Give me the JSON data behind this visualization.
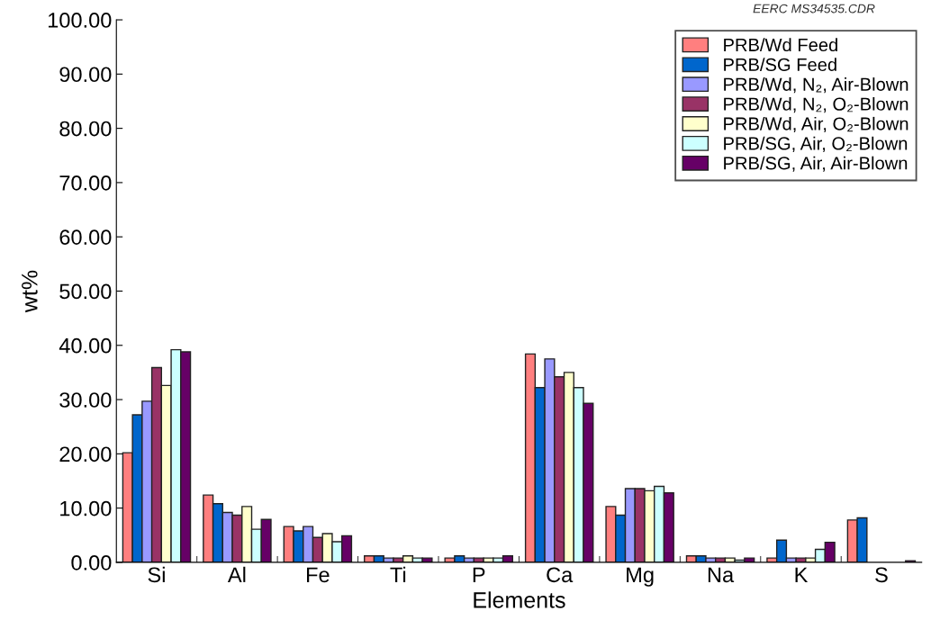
{
  "chart_data": {
    "type": "bar",
    "xlabel": "Elements",
    "ylabel": "wt%",
    "categories": [
      "Si",
      "Al",
      "Fe",
      "Ti",
      "P",
      "Ca",
      "Mg",
      "Na",
      "K",
      "S"
    ],
    "series": [
      {
        "name": "PRB/Wd Feed",
        "color": "#ff7f7f",
        "values": [
          20.2,
          12.4,
          6.6,
          1.2,
          0.8,
          38.4,
          10.3,
          1.2,
          0.8,
          7.8
        ]
      },
      {
        "name": "PRB/SG Feed",
        "color": "#0066cc",
        "values": [
          27.2,
          10.8,
          5.8,
          1.2,
          1.2,
          32.2,
          8.7,
          1.2,
          4.1,
          8.2
        ]
      },
      {
        "name": "PRB/Wd, N₂, Air-Blown",
        "color": "#9999ff",
        "values": [
          29.7,
          9.2,
          6.6,
          0.8,
          0.8,
          37.5,
          13.6,
          0.8,
          0.8,
          null
        ]
      },
      {
        "name": "PRB/Wd, N₂, O₂-Blown",
        "color": "#993366",
        "values": [
          35.9,
          8.7,
          4.6,
          0.8,
          0.8,
          34.2,
          13.6,
          0.8,
          0.8,
          null
        ]
      },
      {
        "name": "PRB/Wd, Air, O₂-Blown",
        "color": "#ffffcc",
        "values": [
          32.6,
          10.3,
          5.3,
          1.2,
          0.8,
          35.0,
          13.2,
          0.8,
          0.8,
          null
        ]
      },
      {
        "name": "PRB/SG, Air, O₂-Blown",
        "color": "#ccffff",
        "values": [
          39.2,
          6.1,
          3.8,
          0.8,
          0.8,
          32.2,
          14.0,
          0.4,
          2.4,
          null
        ]
      },
      {
        "name": "PRB/SG, Air, Air-Blown",
        "color": "#660066",
        "values": [
          38.8,
          7.9,
          4.9,
          0.8,
          1.2,
          29.3,
          12.8,
          0.8,
          3.7,
          0.3
        ]
      }
    ],
    "ylim": [
      0,
      100
    ],
    "yticks": [
      {
        "value": 0,
        "label": "0.00"
      },
      {
        "value": 10,
        "label": "10.00"
      },
      {
        "value": 20,
        "label": "20.00"
      },
      {
        "value": 30,
        "label": "30.00"
      },
      {
        "value": 40,
        "label": "40.00"
      },
      {
        "value": 50,
        "label": "50.00"
      },
      {
        "value": 60,
        "label": "60.00"
      },
      {
        "value": 70,
        "label": "70.00"
      },
      {
        "value": 80,
        "label": "80.00"
      },
      {
        "value": 90,
        "label": "90.00"
      },
      {
        "value": 100,
        "label": "100.00"
      }
    ],
    "annotations": [
      "EERC MS34535.CDR"
    ],
    "legend": "top right",
    "grid": false
  }
}
